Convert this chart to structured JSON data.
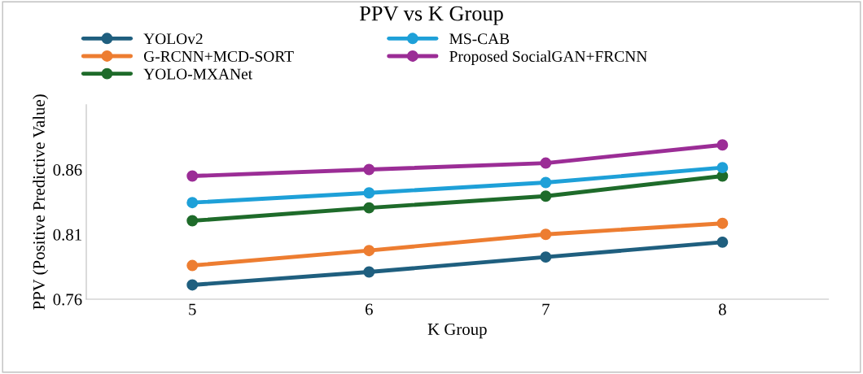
{
  "chart_data": {
    "type": "line",
    "title": "PPV vs K Group",
    "xlabel": "K Group",
    "ylabel": "PPV (Positive Predictive Value)",
    "categories": [
      "5",
      "6",
      "7",
      "8"
    ],
    "series": [
      {
        "name": "YOLOv2",
        "color": "#1f5f7f",
        "values": [
          0.771,
          0.781,
          0.7925,
          0.804
        ]
      },
      {
        "name": "G-RCNN+MCD-SORT",
        "color": "#ed7d31",
        "values": [
          0.786,
          0.7975,
          0.81,
          0.8185
        ]
      },
      {
        "name": "YOLO-MXANet",
        "color": "#1e6b2a",
        "values": [
          0.8205,
          0.8305,
          0.8395,
          0.855
        ]
      },
      {
        "name": "MS-CAB",
        "color": "#1ea0d8",
        "values": [
          0.8345,
          0.842,
          0.85,
          0.8615
        ]
      },
      {
        "name": "Proposed SocialGAN+FRCNN",
        "color": "#9b2d96",
        "values": [
          0.855,
          0.86,
          0.865,
          0.879
        ]
      }
    ],
    "ylim": [
      0.76,
      0.91
    ],
    "yticks": [
      0.76,
      0.81,
      0.86
    ],
    "grid": false,
    "legend": "top",
    "marker": "circle",
    "line_style": "solid"
  }
}
